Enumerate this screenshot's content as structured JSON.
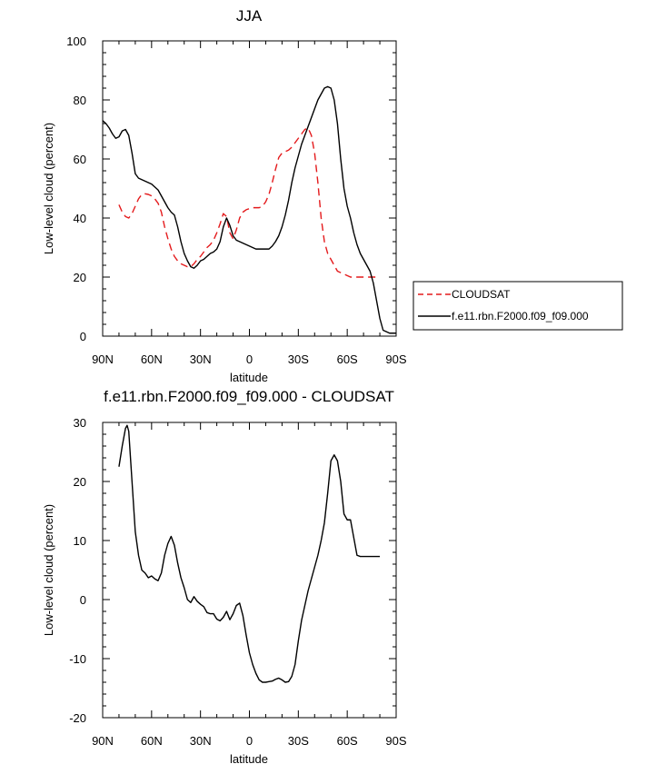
{
  "chart_data": [
    {
      "type": "line",
      "title": "JJA",
      "xlabel": "latitude",
      "ylabel": "Low-level cloud (percent)",
      "xlim": [
        90,
        -90
      ],
      "ylim": [
        0,
        100
      ],
      "x_ticks": [
        90,
        60,
        30,
        0,
        -30,
        -60,
        -90
      ],
      "x_tick_labels": [
        "90N",
        "60N",
        "30N",
        "0",
        "30S",
        "60S",
        "90S"
      ],
      "y_ticks": [
        0,
        20,
        40,
        60,
        80,
        100
      ],
      "y_tick_labels": [
        "0",
        "20",
        "40",
        "60",
        "80",
        "100"
      ],
      "legend": {
        "placement": "right",
        "entries": [
          "CLOUDSAT",
          "f.e11.rbn.F2000.f09_f09.000"
        ]
      },
      "series": [
        {
          "name": "CLOUDSAT",
          "color": "#e41a1c",
          "dash": "dashed",
          "x": [
            80,
            78,
            76,
            74,
            72,
            70,
            68,
            66,
            64,
            62,
            60,
            58,
            56,
            54,
            52,
            50,
            48,
            46,
            44,
            42,
            40,
            38,
            36,
            34,
            32,
            30,
            28,
            26,
            24,
            22,
            20,
            18,
            16,
            14,
            12,
            10,
            8,
            6,
            4,
            2,
            0,
            -2,
            -4,
            -6,
            -8,
            -10,
            -12,
            -14,
            -16,
            -18,
            -20,
            -22,
            -24,
            -26,
            -28,
            -30,
            -32,
            -34,
            -36,
            -38,
            -40,
            -42,
            -44,
            -46,
            -48,
            -50,
            -52,
            -54,
            -56,
            -58,
            -60,
            -62,
            -64,
            -66,
            -68,
            -70,
            -72,
            -74,
            -76,
            -78,
            -80
          ],
          "y": [
            44.5,
            42,
            40.5,
            40,
            41.5,
            44,
            46.5,
            48,
            48.2,
            48,
            47.5,
            46.5,
            45,
            42,
            37,
            33,
            29.5,
            27,
            25.5,
            24.5,
            24,
            23.5,
            23.5,
            24.5,
            26,
            27,
            28.5,
            30,
            31,
            32.5,
            35,
            38,
            41.5,
            40.5,
            35,
            33,
            36,
            40,
            42,
            42.8,
            43.2,
            43.5,
            43.5,
            43.5,
            44,
            45.5,
            48,
            52,
            56.5,
            60.5,
            62,
            62.5,
            63,
            64,
            65.5,
            67,
            68.5,
            70,
            70.5,
            68,
            62,
            52,
            40,
            32,
            28,
            26,
            24,
            22,
            21.5,
            21,
            20.5,
            20,
            20,
            20,
            20,
            20,
            20,
            20,
            20,
            20,
            20
          ]
        },
        {
          "name": "f.e11.rbn.F2000.f09_f09.000",
          "color": "#000000",
          "dash": "solid",
          "x": [
            90,
            88,
            86,
            84,
            82,
            80,
            78,
            76,
            74,
            72,
            70,
            68,
            66,
            64,
            62,
            60,
            58,
            56,
            54,
            52,
            50,
            48,
            46,
            44,
            42,
            40,
            38,
            36,
            34,
            32,
            30,
            28,
            26,
            24,
            22,
            20,
            18,
            16,
            14,
            12,
            10,
            8,
            6,
            4,
            2,
            0,
            -2,
            -4,
            -6,
            -8,
            -10,
            -12,
            -14,
            -16,
            -18,
            -20,
            -22,
            -24,
            -26,
            -28,
            -30,
            -32,
            -34,
            -36,
            -38,
            -40,
            -42,
            -44,
            -46,
            -48,
            -50,
            -52,
            -54,
            -56,
            -58,
            -60,
            -62,
            -64,
            -66,
            -68,
            -70,
            -72,
            -74,
            -76,
            -78,
            -80,
            -82,
            -84,
            -86,
            -88,
            -90
          ],
          "y": [
            73,
            72,
            70.5,
            68.5,
            67,
            67.5,
            69.5,
            70,
            68,
            62,
            55,
            53.5,
            53,
            52.5,
            52,
            51.5,
            50.5,
            49.5,
            47.5,
            45.5,
            43.5,
            42,
            41,
            37,
            32,
            28,
            25.5,
            23.5,
            23,
            24,
            25.5,
            26,
            27,
            28,
            28.5,
            29.5,
            32,
            37,
            40,
            37.5,
            34,
            32.5,
            32,
            31.5,
            31,
            30.5,
            30,
            29.5,
            29.5,
            29.5,
            29.5,
            29.5,
            30.5,
            32,
            34,
            37,
            41,
            46,
            52,
            57,
            61,
            65,
            68,
            71,
            74,
            77,
            80,
            82,
            84,
            84.5,
            84,
            80,
            72,
            60,
            50,
            44,
            40,
            35,
            31,
            28,
            26,
            24,
            22,
            18,
            12,
            6,
            2,
            1.5,
            1,
            1,
            1
          ]
        }
      ]
    },
    {
      "type": "line",
      "title": "f.e11.rbn.F2000.f09_f09.000 - CLOUDSAT",
      "xlabel": "latitude",
      "ylabel": "Low-level cloud (percent)",
      "xlim": [
        90,
        -90
      ],
      "ylim": [
        -20,
        30
      ],
      "x_ticks": [
        90,
        60,
        30,
        0,
        -30,
        -60,
        -90
      ],
      "x_tick_labels": [
        "90N",
        "60N",
        "30N",
        "0",
        "30S",
        "60S",
        "90S"
      ],
      "y_ticks": [
        -20,
        -10,
        0,
        10,
        20,
        30
      ],
      "y_tick_labels": [
        "-20",
        "-10",
        "0",
        "10",
        "20",
        "30"
      ],
      "series": [
        {
          "color": "#000000",
          "dash": "solid",
          "x": [
            80,
            78,
            76,
            75,
            74,
            72,
            70,
            68,
            66,
            64,
            62,
            60,
            58,
            56,
            54,
            52,
            50,
            48,
            46,
            44,
            42,
            40,
            38,
            36,
            34,
            32,
            30,
            28,
            26,
            24,
            22,
            20,
            18,
            16,
            14,
            12,
            10,
            8,
            6,
            4,
            2,
            0,
            -2,
            -4,
            -6,
            -8,
            -10,
            -12,
            -14,
            -16,
            -18,
            -20,
            -22,
            -24,
            -26,
            -28,
            -30,
            -32,
            -34,
            -36,
            -38,
            -40,
            -42,
            -44,
            -46,
            -48,
            -50,
            -52,
            -54,
            -56,
            -58,
            -60,
            -62,
            -64,
            -66,
            -68,
            -70,
            -72,
            -74,
            -76,
            -78,
            -80
          ],
          "y": [
            22.5,
            26,
            29,
            29.5,
            28.5,
            20,
            11.5,
            7.5,
            5,
            4.5,
            3.7,
            4,
            3.5,
            3.2,
            4.5,
            7.5,
            9.5,
            10.7,
            9.2,
            6.2,
            3.7,
            2,
            0,
            -0.5,
            0.5,
            -0.3,
            -0.8,
            -1.2,
            -2.2,
            -2.4,
            -2.4,
            -3.3,
            -3.6,
            -3,
            -2,
            -3.4,
            -2.4,
            -1,
            -0.6,
            -2.7,
            -6,
            -9,
            -11,
            -12.5,
            -13.6,
            -14,
            -14,
            -13.9,
            -13.8,
            -13.5,
            -13.3,
            -13.6,
            -14,
            -13.9,
            -13,
            -11,
            -7,
            -3.5,
            -1,
            1.5,
            3.5,
            5.5,
            7.5,
            10,
            13,
            18,
            23.5,
            24.5,
            23.5,
            20,
            14.5,
            13.5,
            13.5,
            10.5,
            7.5,
            7.3,
            7.3,
            7.3,
            7.3,
            7.3,
            7.3,
            7.3
          ]
        }
      ]
    }
  ]
}
